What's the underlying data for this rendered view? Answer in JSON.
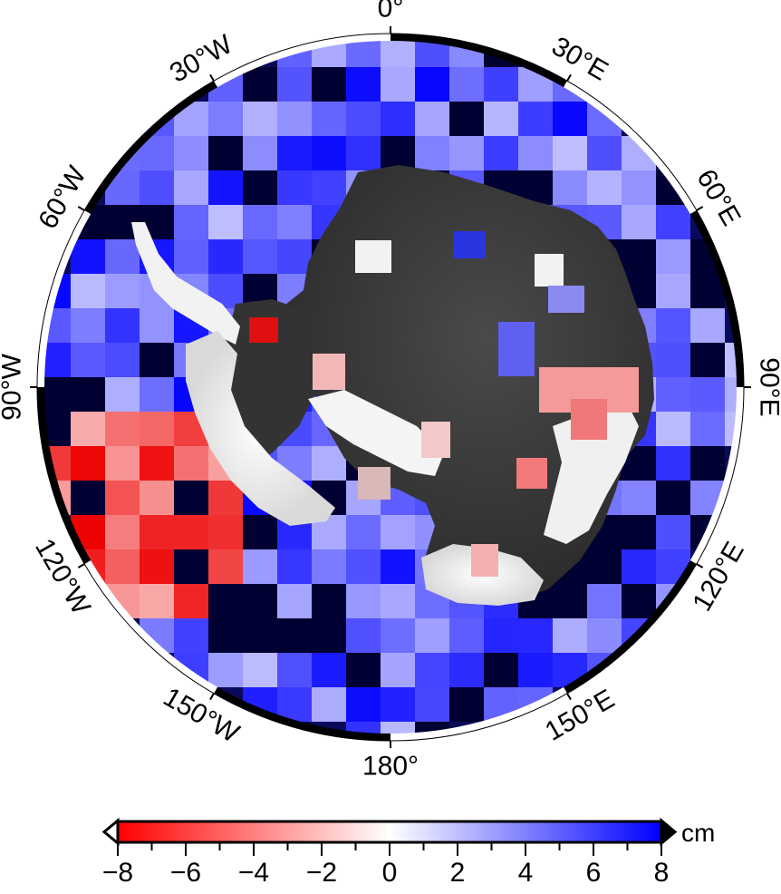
{
  "map": {
    "projection": "south-polar stereographic",
    "longitude_labels": [
      {
        "lon": 0,
        "text": "0°"
      },
      {
        "lon": 30,
        "text": "30°E"
      },
      {
        "lon": 60,
        "text": "60°E"
      },
      {
        "lon": 90,
        "text": "90°E"
      },
      {
        "lon": 120,
        "text": "120°E"
      },
      {
        "lon": 150,
        "text": "150°E"
      },
      {
        "lon": 180,
        "text": "180°"
      },
      {
        "lon": -150,
        "text": "150°W"
      },
      {
        "lon": -120,
        "text": "120°W"
      },
      {
        "lon": -90,
        "text": "90°W"
      },
      {
        "lon": -60,
        "text": "60°W"
      },
      {
        "lon": -30,
        "text": "30°W"
      }
    ],
    "frame": "alternating black and white fancy frame",
    "land_color": "#3c3c3c",
    "ice_shelf_color": "#eeeeee",
    "ocean_base_color": "#0a0a5a"
  },
  "colorbar": {
    "unit": "cm",
    "min": -8,
    "max": 8,
    "tick_labels": [
      "−8",
      "−6",
      "−4",
      "−2",
      "0",
      "2",
      "4",
      "6",
      "8"
    ],
    "tick_values": [
      -8,
      -6,
      -4,
      -2,
      0,
      2,
      4,
      6,
      8
    ],
    "colors": {
      "negative_end": "#ff0000",
      "center": "#ffffff",
      "positive_end": "#0000ff",
      "below_min_triangle": "#ffffff",
      "above_max_triangle": "#000000"
    },
    "triangles": "both ends"
  }
}
